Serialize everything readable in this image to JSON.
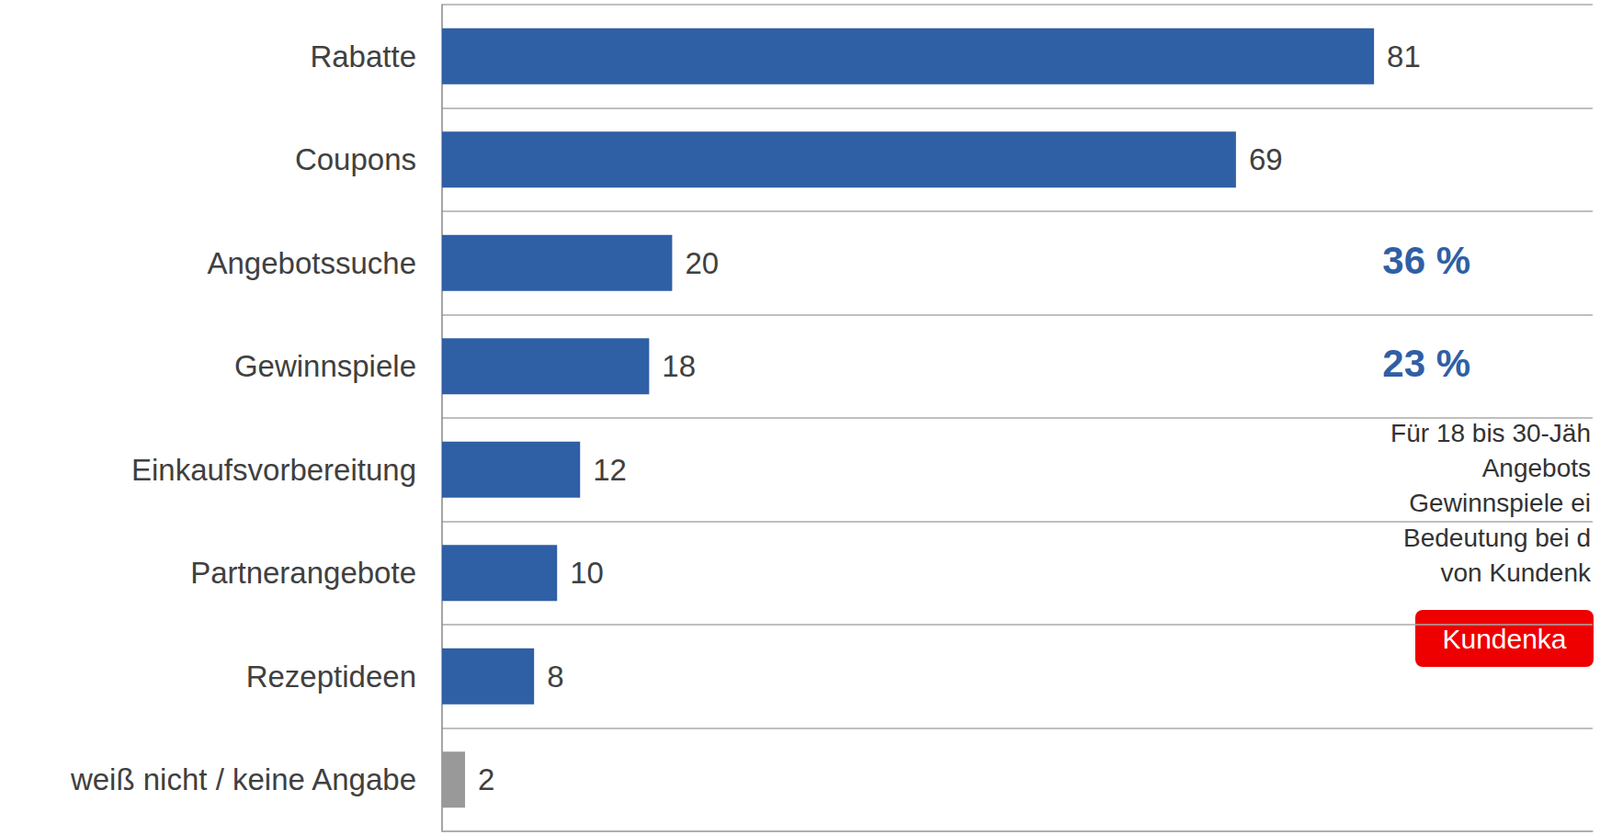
{
  "chart_data": {
    "type": "bar",
    "orientation": "horizontal",
    "categories": [
      "Rabatte",
      "Coupons",
      "Angebotssuche",
      "Gewinnspiele",
      "Einkaufsvorbereitung",
      "Partnerangebote",
      "Rezeptideen",
      "weiß nicht / keine Angabe"
    ],
    "values": [
      81,
      69,
      20,
      18,
      12,
      10,
      8,
      2
    ],
    "colors": [
      "#2f5fa5",
      "#2f5fa5",
      "#2f5fa5",
      "#2f5fa5",
      "#2f5fa5",
      "#2f5fa5",
      "#2f5fa5",
      "#999999"
    ],
    "xlim": [
      0,
      100
    ],
    "tick_labels": "y",
    "data_labels": true,
    "grid": true,
    "annotations": {
      "highlights": [
        "36 %",
        "23 %"
      ],
      "note": [
        "Für 18 bis 30-Jäh",
        "Angebots",
        "Gewinnspiele ei",
        "Bedeutung bei d",
        "von Kundenk"
      ],
      "button": "Kundenka"
    }
  }
}
